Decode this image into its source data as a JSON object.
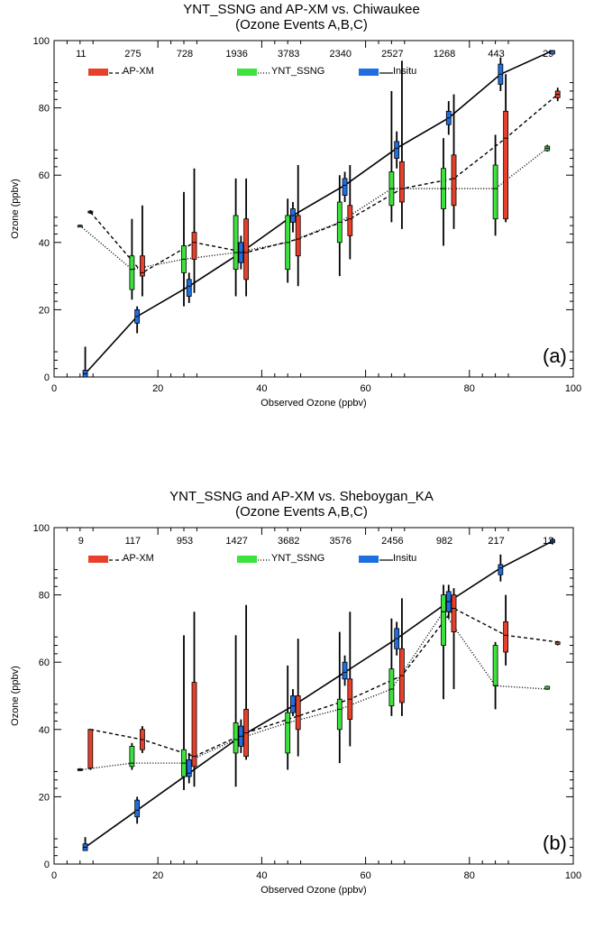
{
  "chart_data": [
    {
      "type": "box",
      "title": "YNT_SSNG and AP-XM vs. Chiwaukee",
      "subtitle": "(Ozone Events A,B,C)",
      "xlabel": "Observed Ozone (ppbv)",
      "ylabel": "Ozone (ppbv)",
      "xlim": [
        0,
        100
      ],
      "ylim": [
        0,
        100
      ],
      "xticks": [
        0,
        20,
        40,
        60,
        80,
        100
      ],
      "yticks": [
        0,
        20,
        40,
        60,
        80,
        100
      ],
      "panel_label": "(a)",
      "grid": false,
      "legend_position": "top",
      "bin_centers": [
        5,
        15,
        25,
        35,
        45,
        55,
        65,
        75,
        85,
        95
      ],
      "counts": [
        "11",
        "275",
        "728",
        "1936",
        "3783",
        "2340",
        "2527",
        "1268",
        "443",
        "29"
      ],
      "series": [
        {
          "name": "AP-XM",
          "color": "#e8402a",
          "line": "dashed",
          "offset": 2,
          "median": [
            49,
            31,
            40,
            37,
            41,
            47,
            56,
            59,
            71,
            84
          ],
          "boxes": [
            {
              "min": 48.5,
              "q1": 48.8,
              "q3": 49.3,
              "max": 49.6
            },
            {
              "min": 24,
              "q1": 30,
              "q3": 36,
              "max": 51
            },
            {
              "min": 25,
              "q1": 35,
              "q3": 43,
              "max": 62
            },
            {
              "min": 24,
              "q1": 29,
              "q3": 47,
              "max": 59
            },
            {
              "min": 27,
              "q1": 36,
              "q3": 48,
              "max": 63
            },
            {
              "min": 35,
              "q1": 42,
              "q3": 51,
              "max": 63
            },
            {
              "min": 44,
              "q1": 52,
              "q3": 64,
              "max": 94
            },
            {
              "min": 44,
              "q1": 51,
              "q3": 66,
              "max": 84
            },
            {
              "min": 46,
              "q1": 47,
              "q3": 79,
              "max": 90
            },
            {
              "min": 82,
              "q1": 83,
              "q3": 85,
              "max": 86
            }
          ]
        },
        {
          "name": "YNT_SSNG",
          "color": "#3ce33c",
          "line": "dotted",
          "offset": 0,
          "median": [
            45,
            32,
            35,
            37,
            40,
            46,
            56,
            56,
            56,
            68
          ],
          "boxes": [
            {
              "min": 44.7,
              "q1": 44.8,
              "q3": 45.1,
              "max": 45.3
            },
            {
              "min": 23,
              "q1": 26,
              "q3": 36,
              "max": 47
            },
            {
              "min": 21,
              "q1": 31,
              "q3": 39,
              "max": 55
            },
            {
              "min": 24,
              "q1": 32,
              "q3": 48,
              "max": 59
            },
            {
              "min": 28,
              "q1": 32,
              "q3": 48,
              "max": 53
            },
            {
              "min": 30,
              "q1": 40,
              "q3": 52,
              "max": 60
            },
            {
              "min": 46,
              "q1": 51,
              "q3": 61,
              "max": 85
            },
            {
              "min": 39,
              "q1": 50,
              "q3": 62,
              "max": 71
            },
            {
              "min": 42,
              "q1": 47,
              "q3": 63,
              "max": 72
            },
            {
              "min": 67,
              "q1": 67.3,
              "q3": 68.6,
              "max": 69
            }
          ]
        },
        {
          "name": "Insitu",
          "color": "#1f6fe0",
          "line": "solid",
          "offset": 1,
          "median": [
            1,
            18,
            27,
            37,
            48,
            57,
            68,
            77,
            90,
            97
          ],
          "boxes": [
            {
              "min": 0,
              "q1": 0,
              "q3": 2,
              "max": 9
            },
            {
              "min": 13,
              "q1": 16,
              "q3": 20,
              "max": 21
            },
            {
              "min": 22,
              "q1": 24,
              "q3": 29,
              "max": 31
            },
            {
              "min": 32,
              "q1": 34,
              "q3": 40,
              "max": 42
            },
            {
              "min": 43,
              "q1": 46,
              "q3": 50,
              "max": 52
            },
            {
              "min": 52,
              "q1": 54,
              "q3": 59,
              "max": 61
            },
            {
              "min": 62,
              "q1": 65,
              "q3": 70,
              "max": 73
            },
            {
              "min": 72,
              "q1": 75,
              "q3": 79,
              "max": 82
            },
            {
              "min": 85,
              "q1": 87,
              "q3": 93,
              "max": 95
            },
            {
              "min": 96,
              "q1": 96,
              "q3": 97,
              "max": 97
            }
          ]
        }
      ]
    },
    {
      "type": "box",
      "title": "YNT_SSNG and AP-XM vs. Sheboygan_KA",
      "subtitle": "(Ozone Events A,B,C)",
      "xlabel": "Observed Ozone (ppbv)",
      "ylabel": "Ozone (ppbv)",
      "xlim": [
        0,
        100
      ],
      "ylim": [
        0,
        100
      ],
      "xticks": [
        0,
        20,
        40,
        60,
        80,
        100
      ],
      "yticks": [
        0,
        20,
        40,
        60,
        80,
        100
      ],
      "panel_label": "(b)",
      "grid": false,
      "legend_position": "top",
      "bin_centers": [
        5,
        15,
        25,
        35,
        45,
        55,
        65,
        75,
        85,
        95
      ],
      "counts": [
        "9",
        "117",
        "953",
        "1427",
        "3682",
        "3576",
        "2456",
        "982",
        "217",
        "12"
      ],
      "series": [
        {
          "name": "AP-XM",
          "color": "#e8402a",
          "line": "dashed",
          "offset": 2,
          "median": [
            40,
            37,
            32,
            39,
            44,
            49,
            56,
            76,
            68,
            66
          ],
          "boxes": [
            {
              "min": 28,
              "q1": 28.5,
              "q3": 40,
              "max": 40
            },
            {
              "min": 33,
              "q1": 34,
              "q3": 40,
              "max": 41
            },
            {
              "min": 23,
              "q1": 29,
              "q3": 54,
              "max": 75
            },
            {
              "min": 31,
              "q1": 32,
              "q3": 46,
              "max": 77
            },
            {
              "min": 32,
              "q1": 40,
              "q3": 50,
              "max": 67
            },
            {
              "min": 35,
              "q1": 43,
              "q3": 55,
              "max": 75
            },
            {
              "min": 44,
              "q1": 48,
              "q3": 64,
              "max": 79
            },
            {
              "min": 52,
              "q1": 69,
              "q3": 80,
              "max": 82
            },
            {
              "min": 59,
              "q1": 63,
              "q3": 72,
              "max": 80
            },
            {
              "min": 65,
              "q1": 65.3,
              "q3": 66,
              "max": 66.3
            }
          ]
        },
        {
          "name": "YNT_SSNG",
          "color": "#3ce33c",
          "line": "dotted",
          "offset": 0,
          "median": [
            28,
            30,
            30,
            37,
            42,
            46,
            52,
            75,
            53,
            52
          ],
          "boxes": [
            {
              "min": 27.7,
              "q1": 27.8,
              "q3": 28.3,
              "max": 28.5
            },
            {
              "min": 28,
              "q1": 29,
              "q3": 35,
              "max": 36
            },
            {
              "min": 22,
              "q1": 26,
              "q3": 34,
              "max": 68
            },
            {
              "min": 23,
              "q1": 33,
              "q3": 42,
              "max": 68
            },
            {
              "min": 28,
              "q1": 33,
              "q3": 45,
              "max": 59
            },
            {
              "min": 30,
              "q1": 40,
              "q3": 49,
              "max": 69
            },
            {
              "min": 44,
              "q1": 47,
              "q3": 58,
              "max": 73
            },
            {
              "min": 49,
              "q1": 65,
              "q3": 80,
              "max": 83
            },
            {
              "min": 46,
              "q1": 53,
              "q3": 65,
              "max": 66
            },
            {
              "min": 51.8,
              "q1": 52,
              "q3": 52.8,
              "max": 53
            }
          ]
        },
        {
          "name": "Insitu",
          "color": "#1f6fe0",
          "line": "solid",
          "offset": 1,
          "median": [
            5,
            16,
            27,
            38,
            47,
            57,
            67,
            78,
            88,
            96
          ],
          "boxes": [
            {
              "min": 4,
              "q1": 4,
              "q3": 6,
              "max": 8
            },
            {
              "min": 12,
              "q1": 14,
              "q3": 19,
              "max": 20
            },
            {
              "min": 24,
              "q1": 26,
              "q3": 31,
              "max": 33
            },
            {
              "min": 33,
              "q1": 35,
              "q3": 41,
              "max": 43
            },
            {
              "min": 44,
              "q1": 45,
              "q3": 50,
              "max": 52
            },
            {
              "min": 53,
              "q1": 55,
              "q3": 60,
              "max": 62
            },
            {
              "min": 62,
              "q1": 64,
              "q3": 70,
              "max": 72
            },
            {
              "min": 73,
              "q1": 75,
              "q3": 81,
              "max": 83
            },
            {
              "min": 84,
              "q1": 86,
              "q3": 89,
              "max": 92
            },
            {
              "min": 95,
              "q1": 95.5,
              "q3": 96.5,
              "max": 97
            }
          ]
        }
      ]
    }
  ]
}
